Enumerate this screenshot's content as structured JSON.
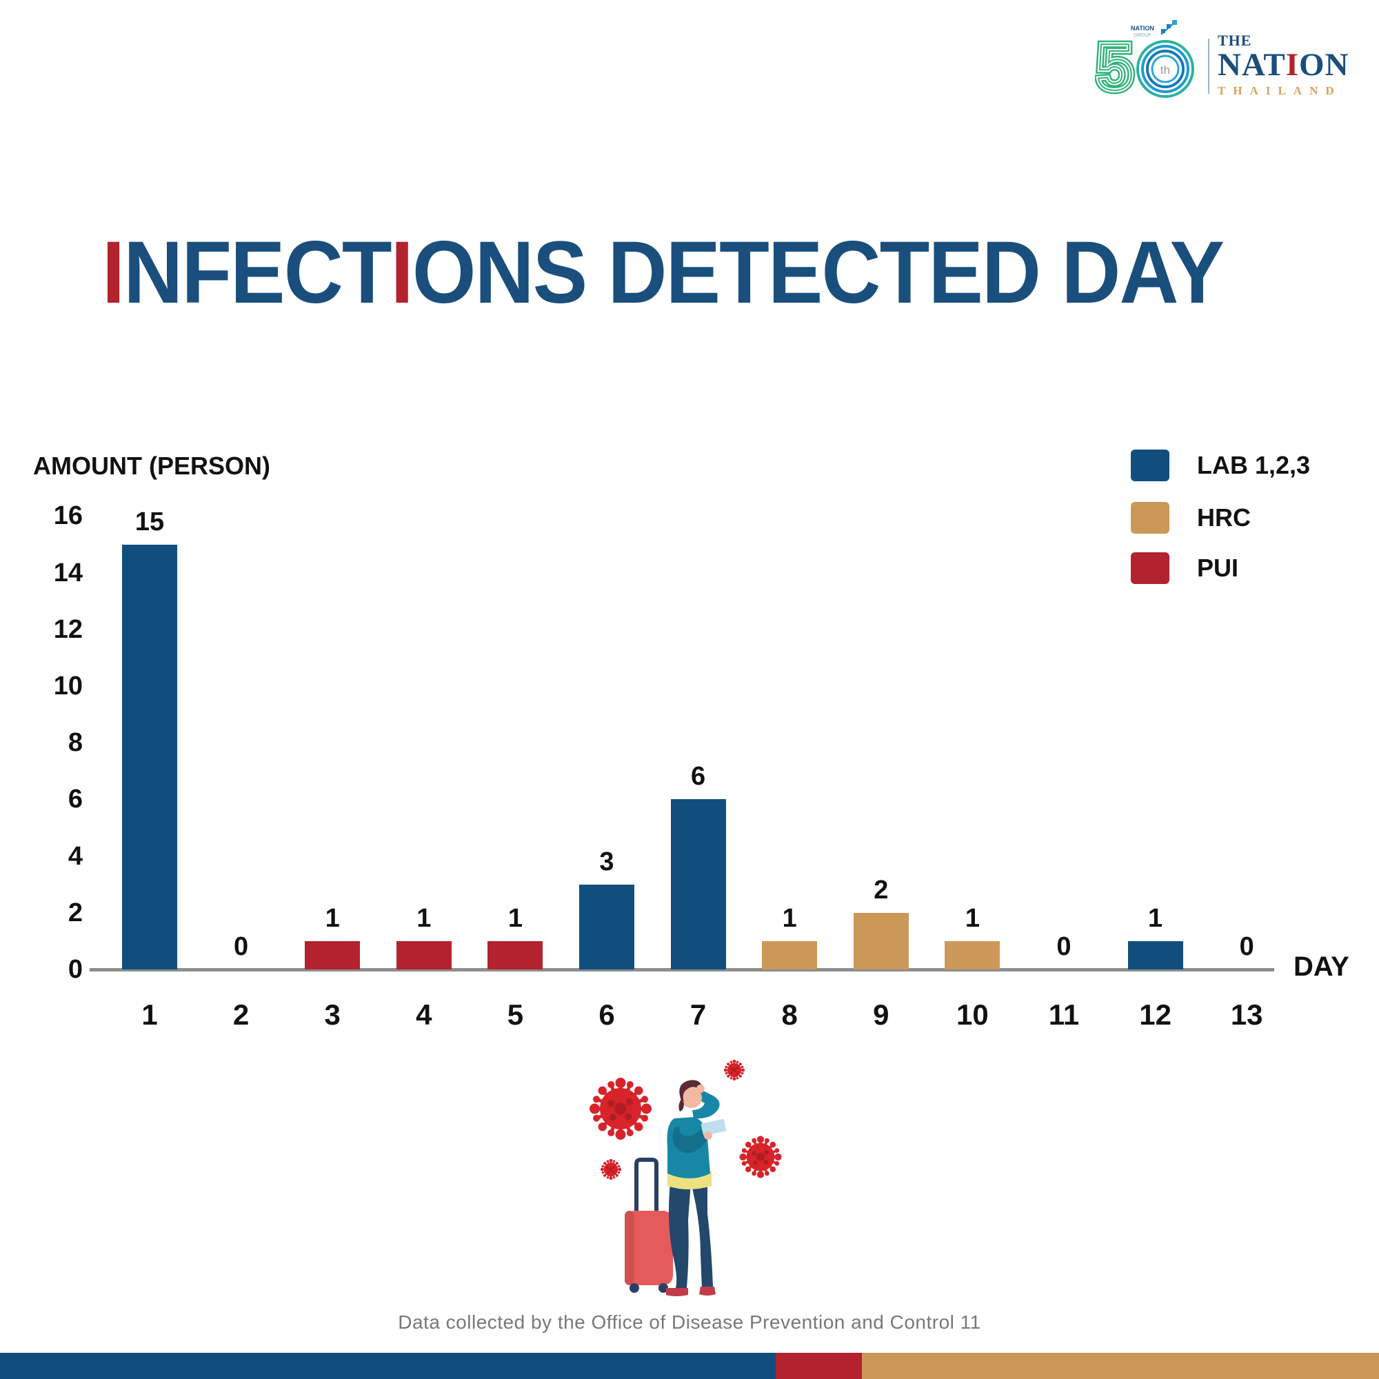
{
  "logo": {
    "anniversary": {
      "number": "50",
      "suffix": "th",
      "group_label": "NATION GROUP",
      "green": "#2FB279",
      "blue_rings": [
        "#29B3A0",
        "#1C9BD1",
        "#1777B8"
      ],
      "suffix_color": "#9B9B9B"
    },
    "masthead": {
      "the": "THE",
      "nation_before": "NAT",
      "nation_red": "I",
      "nation_after": "ON",
      "country": "THAILAND",
      "navy": "#1A4E7D",
      "red": "#B2222F",
      "gold": "#D8A35B"
    }
  },
  "title": {
    "full_text": "INFECTIONS DETECTED DAY",
    "segments": [
      {
        "text": "I",
        "red": true
      },
      {
        "text": "NFECT",
        "red": false
      },
      {
        "text": "I",
        "red": true
      },
      {
        "text": "ONS DETECTED DAY",
        "red": false
      }
    ],
    "navy": "#1A4E7D",
    "red": "#B2222F"
  },
  "chart_data": {
    "type": "bar",
    "title": "INFECTIONS DETECTED DAY",
    "xlabel": "DAY",
    "ylabel": "AMOUNT (PERSON)",
    "ylim": [
      0,
      16
    ],
    "yticks": [
      0,
      2,
      4,
      6,
      8,
      10,
      12,
      14,
      16
    ],
    "grid": false,
    "legend_position": "top-right",
    "categories": [
      "1",
      "2",
      "3",
      "4",
      "5",
      "6",
      "7",
      "8",
      "9",
      "10",
      "11",
      "12",
      "13"
    ],
    "values": [
      15,
      0,
      1,
      1,
      1,
      3,
      6,
      1,
      2,
      1,
      0,
      1,
      0
    ],
    "series_by_day": [
      "LAB 1,2,3",
      null,
      "PUI",
      "PUI",
      "PUI",
      "LAB 1,2,3",
      "LAB 1,2,3",
      "HRC",
      "HRC",
      "HRC",
      null,
      "LAB 1,2,3",
      null
    ],
    "legend": [
      {
        "label": "LAB 1,2,3",
        "color": "#114E7E"
      },
      {
        "label": "HRC",
        "color": "#CC9857"
      },
      {
        "label": "PUI",
        "color": "#B2222F"
      }
    ],
    "axis_color": "#8E8E8E"
  },
  "illustration": {
    "icons": [
      "coronavirus-icon",
      "sick-traveler-figure",
      "suitcase"
    ],
    "virus_color": "#D8232A",
    "sweater_color": "#1787A5",
    "pants_color": "#23486B",
    "suitcase_color": "#E55B5B"
  },
  "footer": {
    "text": "Data collected by the Office of Disease Prevention and Control 11"
  },
  "bottom_bar": {
    "segments": [
      {
        "color": "#114E7E",
        "width_pct": 56.25
      },
      {
        "color": "#B2222F",
        "width_pct": 6.25
      },
      {
        "color": "#CC9857",
        "width_pct": 37.5
      }
    ]
  }
}
